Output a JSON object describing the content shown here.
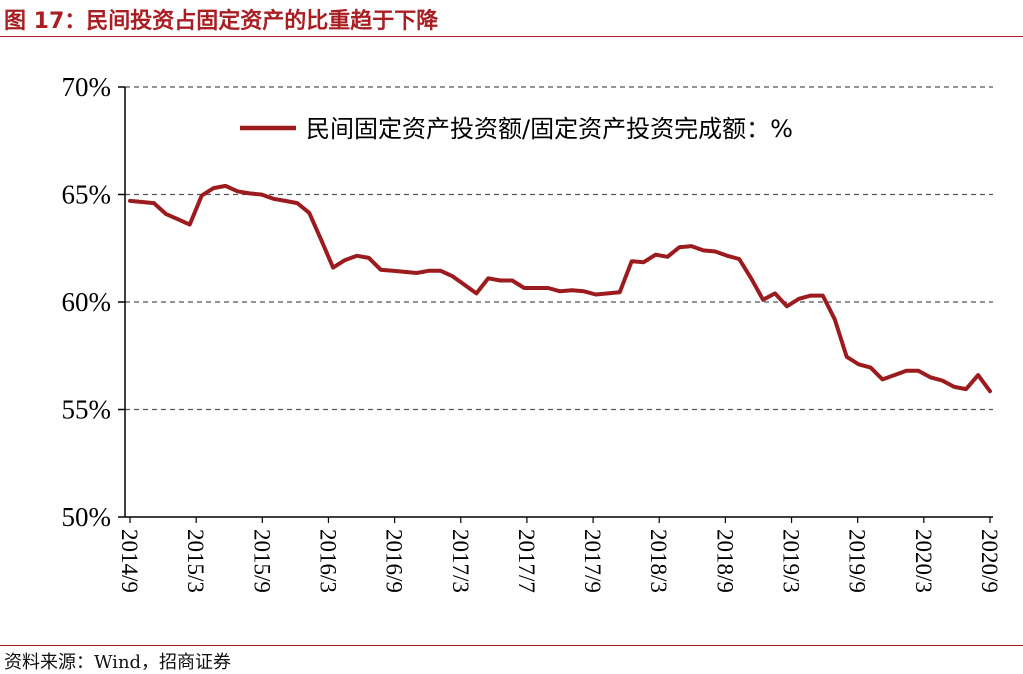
{
  "figure": {
    "title": "图 17：民间投资占固定资产的比重趋于下降",
    "source": "资料来源：Wind，招商证券"
  },
  "colors": {
    "accent": "#a81e22",
    "series": "#9b1b1e",
    "grid": "#555555"
  },
  "chart_data": {
    "type": "line",
    "xlabel": "",
    "ylabel": "",
    "ylim": [
      50,
      70
    ],
    "yticks": [
      50,
      55,
      60,
      65,
      70
    ],
    "ytick_labels": [
      "50%",
      "55%",
      "60%",
      "65%",
      "70%"
    ],
    "grid": "horizontal dashed",
    "legend_position": "top",
    "xtick_labels": [
      "2014/9",
      "2015/3",
      "2015/9",
      "2016/3",
      "2016/9",
      "2017/3",
      "2017/7",
      "2017/9",
      "2018/3",
      "2018/9",
      "2019/3",
      "2019/9",
      "2020/3",
      "2020/9"
    ],
    "series": [
      {
        "name": "民间固定资产投资额/固定资产投资完成额：%",
        "values": [
          64.7,
          64.65,
          64.6,
          64.1,
          63.85,
          63.6,
          64.95,
          65.3,
          65.4,
          65.15,
          65.05,
          65.0,
          64.8,
          64.7,
          64.6,
          64.15,
          62.9,
          61.6,
          61.95,
          62.15,
          62.05,
          61.5,
          61.45,
          61.4,
          61.35,
          61.45,
          61.45,
          61.2,
          60.8,
          60.4,
          61.1,
          61.0,
          61.0,
          60.65,
          60.65,
          60.65,
          60.5,
          60.55,
          60.5,
          60.35,
          60.4,
          60.45,
          61.9,
          61.85,
          62.2,
          62.1,
          62.55,
          62.6,
          62.4,
          62.35,
          62.15,
          62.0,
          61.1,
          60.1,
          60.4,
          59.8,
          60.15,
          60.3,
          60.3,
          59.2,
          57.45,
          57.1,
          56.95,
          56.4,
          56.6,
          56.8,
          56.8,
          56.5,
          56.35,
          56.05,
          55.95,
          56.6,
          55.85
        ]
      }
    ]
  }
}
